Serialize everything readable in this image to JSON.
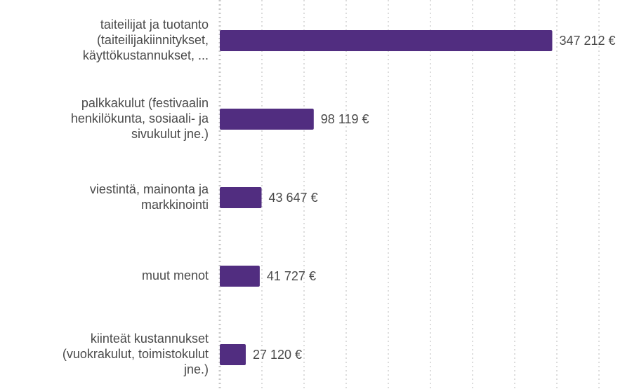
{
  "chart_data": {
    "type": "bar",
    "orientation": "horizontal",
    "categories": [
      "taiteilijat ja tuotanto\n(taiteilijakiinnitykset,\nkäyttökustannukset, ...",
      "palkkakulut (festivaalin\nhenkilökunta, sosiaali- ja\nsivukulut jne.)",
      "viestintä, mainonta ja\nmarkkinointi",
      "muut menot",
      "kiinteät kustannukset\n(vuokrakulut, toimistokulut\njne.)"
    ],
    "values": [
      347212,
      98119,
      43647,
      41727,
      27120
    ],
    "value_labels": [
      "347 212 €",
      "98 119 €",
      "43 647 €",
      "41 727 €",
      "27 120 €"
    ],
    "color": "#512d80",
    "xlim": [
      0,
      440000
    ],
    "xticks": [
      0,
      44000,
      88000,
      132000,
      176000,
      220000,
      264000,
      308000,
      352000,
      396000
    ],
    "grid": true
  }
}
